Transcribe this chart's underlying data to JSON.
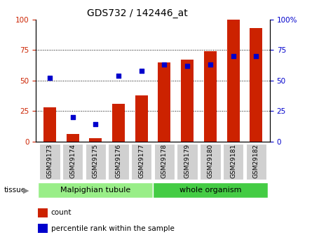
{
  "title": "GDS732 / 142446_at",
  "categories": [
    "GSM29173",
    "GSM29174",
    "GSM29175",
    "GSM29176",
    "GSM29177",
    "GSM29178",
    "GSM29179",
    "GSM29180",
    "GSM29181",
    "GSM29182"
  ],
  "bar_values": [
    28,
    6,
    3,
    31,
    38,
    65,
    67,
    74,
    100,
    93
  ],
  "dot_values": [
    52,
    20,
    14,
    54,
    58,
    63,
    62,
    63,
    70,
    70
  ],
  "bar_color": "#cc2200",
  "dot_color": "#0000cc",
  "bar_width": 0.55,
  "ylim": [
    0,
    100
  ],
  "grid_lines": [
    25,
    50,
    75
  ],
  "left_axis_color": "#cc2200",
  "right_axis_color": "#0000cc",
  "tissue_groups": [
    {
      "label": "Malpighian tubule",
      "indices": [
        0,
        1,
        2,
        3,
        4
      ],
      "color": "#99ee88"
    },
    {
      "label": "whole organism",
      "indices": [
        5,
        6,
        7,
        8,
        9
      ],
      "color": "#44cc44"
    }
  ],
  "legend_items": [
    {
      "label": "count",
      "color": "#cc2200"
    },
    {
      "label": "percentile rank within the sample",
      "color": "#0000cc"
    }
  ],
  "bg_color": "#ffffff",
  "tick_label_bg": "#cccccc",
  "title_fontsize": 10,
  "tick_fontsize": 7.5,
  "legend_fontsize": 7.5
}
